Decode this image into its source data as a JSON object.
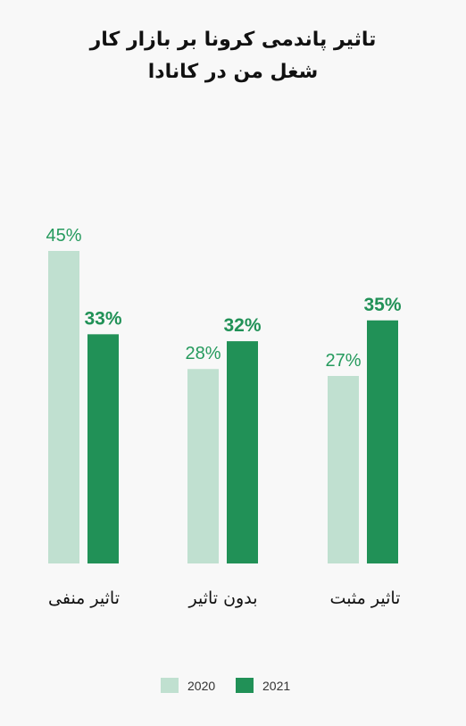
{
  "chart_data": {
    "type": "bar",
    "title_lines": [
      "تاثیر پاندمی کرونا بر بازار کار",
      "شغل من در کانادا"
    ],
    "categories": [
      "تاثیر منفی",
      "بدون تاثیر",
      "تاثیر مثبت"
    ],
    "series": [
      {
        "name": "2020",
        "values": [
          45,
          28,
          27
        ],
        "labels": [
          "45%",
          "28%",
          "27%"
        ],
        "color": "#c0e0d0",
        "label_color": "#259a5d"
      },
      {
        "name": "2021",
        "values": [
          33,
          32,
          35
        ],
        "labels": [
          "33%",
          "32%",
          "35%"
        ],
        "color": "#219157",
        "label_color": "#219157"
      }
    ],
    "ylim": [
      0,
      45
    ],
    "grid": false,
    "legend_position": "bottom"
  }
}
